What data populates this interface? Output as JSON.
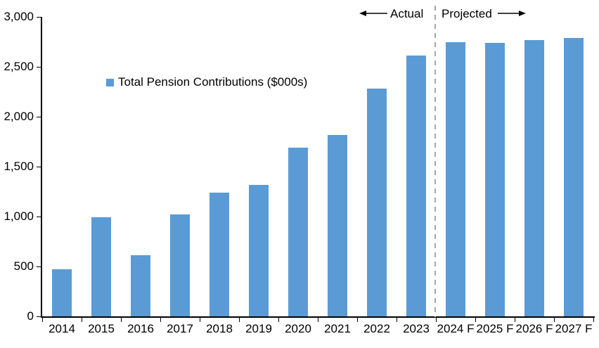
{
  "chart_data": {
    "type": "bar",
    "title": "",
    "xlabel": "",
    "ylabel": "",
    "categories": [
      "2014",
      "2015",
      "2016",
      "2017",
      "2018",
      "2019",
      "2020",
      "2021",
      "2022",
      "2023",
      "2024 F",
      "2025 F",
      "2026 F",
      "2027 F"
    ],
    "series": [
      {
        "name": "Total Pension Contributions ($000s)",
        "values": [
          470,
          990,
          610,
          1020,
          1240,
          1320,
          1690,
          1820,
          2280,
          2610,
          2750,
          2740,
          2770,
          2790
        ]
      }
    ],
    "ylim": [
      0,
      3000
    ],
    "yticks": [
      {
        "label": "3,000",
        "value": 3000
      },
      {
        "label": "2,500",
        "value": 2500
      },
      {
        "label": "2,000",
        "value": 2000
      },
      {
        "label": "1,500",
        "value": 1500
      },
      {
        "label": "1,000",
        "value": 1000
      },
      {
        "label": "500",
        "value": 500
      },
      {
        "label": "0",
        "value": 0
      }
    ],
    "bar_color": "#5B9BD5",
    "divider_color": "#A6A6A6",
    "grid": false,
    "legend_position": "inside-upper-left",
    "annotations": {
      "actual_label": "Actual",
      "projected_label": "Projected",
      "divider_after_category": "2023"
    }
  }
}
